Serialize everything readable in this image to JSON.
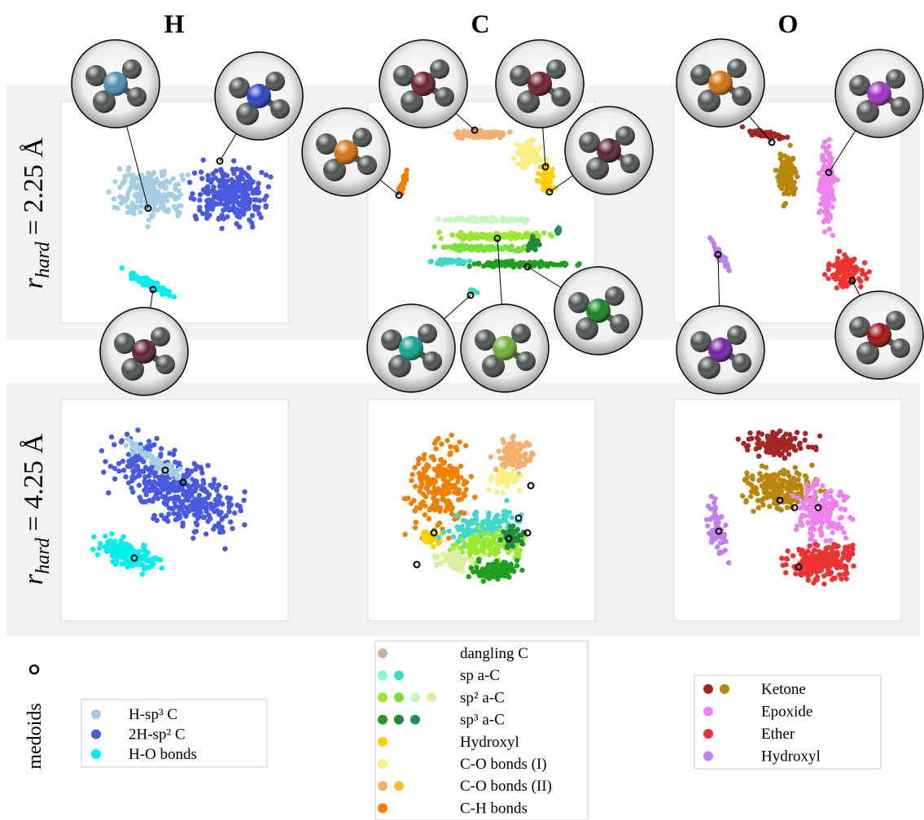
{
  "columns": [
    "H",
    "C",
    "O"
  ],
  "rows": [
    {
      "symbol": "r",
      "subscript": "hard",
      "value": "= 2.25 Å"
    },
    {
      "symbol": "r",
      "subscript": "hard",
      "value": "= 4.25 Å"
    }
  ],
  "medoids_label": "medoids",
  "legends": [
    {
      "items": [
        {
          "label": "H-sp³ C",
          "colors": [
            "#a6cee3"
          ]
        },
        {
          "label": "2H-sp² C",
          "colors": [
            "#4a5ae0"
          ]
        },
        {
          "label": "H-O bonds",
          "colors": [
            "#00f0f0"
          ]
        }
      ]
    },
    {
      "items": [
        {
          "label": "dangling C",
          "colors": [
            "#c9b29b"
          ]
        },
        {
          "label": "sp a-C",
          "colors": [
            "#7fffd4",
            "#40d8c8"
          ]
        },
        {
          "label": "sp² a-C",
          "colors": [
            "#9ce830",
            "#7be03a",
            "#c8f5c0",
            "#d8f0a0"
          ]
        },
        {
          "label": "sp³ a-C",
          "colors": [
            "#1ea01e",
            "#228b3b",
            "#209060"
          ]
        },
        {
          "label": "Hydroxyl",
          "colors": [
            "#ffd000"
          ]
        },
        {
          "label": "C-O bonds (I)",
          "colors": [
            "#f8f080"
          ]
        },
        {
          "label": "C-O bonds (II)",
          "colors": [
            "#f5b070",
            "#ffc030"
          ]
        },
        {
          "label": "C-H bonds",
          "colors": [
            "#f08000"
          ]
        }
      ]
    },
    {
      "items": [
        {
          "label": "Ketone",
          "colors": [
            "#a52525",
            "#b8860b"
          ]
        },
        {
          "label": "Epoxide",
          "colors": [
            "#ee82ee"
          ]
        },
        {
          "label": "Ether",
          "colors": [
            "#ee3333"
          ]
        },
        {
          "label": "Hydroxyl",
          "colors": [
            "#c080f0"
          ]
        }
      ]
    }
  ]
}
